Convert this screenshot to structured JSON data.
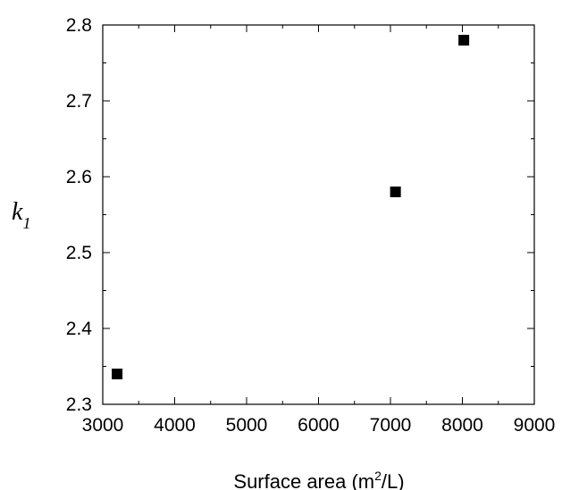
{
  "chart_data": {
    "type": "scatter",
    "title": "",
    "xlabel": "Surface area (m",
    "xlabel_superscript": "2",
    "xlabel_suffix": "/L)",
    "ylabel": "k",
    "ylabel_subscript": "1",
    "xlim": [
      3000,
      9000
    ],
    "ylim": [
      2.3,
      2.8
    ],
    "xticks": [
      3000,
      4000,
      5000,
      6000,
      7000,
      8000,
      9000
    ],
    "yticks": [
      2.3,
      2.4,
      2.5,
      2.6,
      2.7,
      2.8
    ],
    "xtick_labels": [
      "3000",
      "4000",
      "5000",
      "6000",
      "7000",
      "8000",
      "9000"
    ],
    "ytick_labels": [
      "2.3",
      "2.4",
      "2.5",
      "2.6",
      "2.7",
      "2.8"
    ],
    "grid": false,
    "marker": "square",
    "marker_color": "#000000",
    "points": [
      {
        "x": 3200,
        "y": 2.34
      },
      {
        "x": 7070,
        "y": 2.58
      },
      {
        "x": 8020,
        "y": 2.78
      }
    ]
  }
}
